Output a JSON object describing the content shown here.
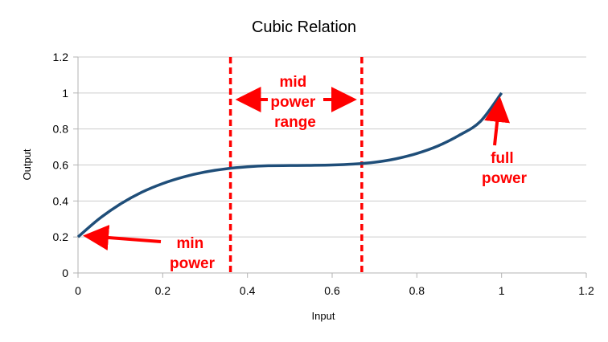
{
  "chart_data": {
    "type": "line",
    "title": "Cubic Relation",
    "xlabel": "Input",
    "ylabel": "Output",
    "xlim": [
      0,
      1.2
    ],
    "ylim": [
      0,
      1.2
    ],
    "x_ticks": [
      "0",
      "0.2",
      "0.4",
      "0.6",
      "0.8",
      "1",
      "1.2"
    ],
    "y_ticks": [
      "0",
      "0.2",
      "0.4",
      "0.6",
      "0.8",
      "1",
      "1.2"
    ],
    "grid": "horizontal",
    "legend": "none",
    "series": [
      {
        "color": "#1f4e79",
        "x": [
          0,
          0.05,
          0.1,
          0.15,
          0.2,
          0.25,
          0.3,
          0.35,
          0.4,
          0.45,
          0.5,
          0.55,
          0.6,
          0.65,
          0.7,
          0.75,
          0.8,
          0.85,
          0.9,
          0.95,
          1.0
        ],
        "y": [
          0.2,
          0.301,
          0.383,
          0.448,
          0.497,
          0.534,
          0.561,
          0.579,
          0.59,
          0.596,
          0.597,
          0.598,
          0.6,
          0.605,
          0.615,
          0.634,
          0.664,
          0.706,
          0.765,
          0.842,
          1.0
        ]
      }
    ],
    "annotations": {
      "vlines": [
        0.36,
        0.67
      ],
      "vline_color": "#ff0000",
      "min_power": {
        "lines": [
          "min",
          "power"
        ],
        "points_to": [
          0,
          0.2
        ]
      },
      "mid_power": {
        "lines": [
          "mid",
          "power",
          "range"
        ]
      },
      "full_power": {
        "lines": [
          "full",
          "power"
        ],
        "points_to": [
          1.0,
          1.0
        ]
      }
    }
  }
}
